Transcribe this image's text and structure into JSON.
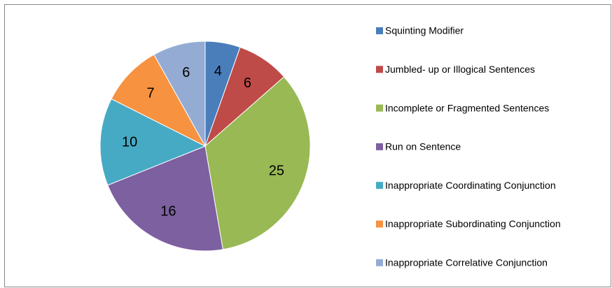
{
  "chart_data": {
    "type": "pie",
    "categories": [
      "Squinting Modifier",
      "Jumbled- up or Illogical Sentences",
      "Incomplete or Fragmented Sentences",
      "Run on Sentence",
      "Inappropriate Coordinating Conjunction",
      "Inappropriate Subordinating Conjunction",
      "Inappropriate Correlative Conjunction"
    ],
    "values": [
      4,
      6,
      25,
      16,
      10,
      7,
      6
    ],
    "colors": [
      "#4a7ebb",
      "#be4b48",
      "#98b954",
      "#7d60a0",
      "#46aac5",
      "#f69240",
      "#94acd4"
    ],
    "legend": "right"
  }
}
